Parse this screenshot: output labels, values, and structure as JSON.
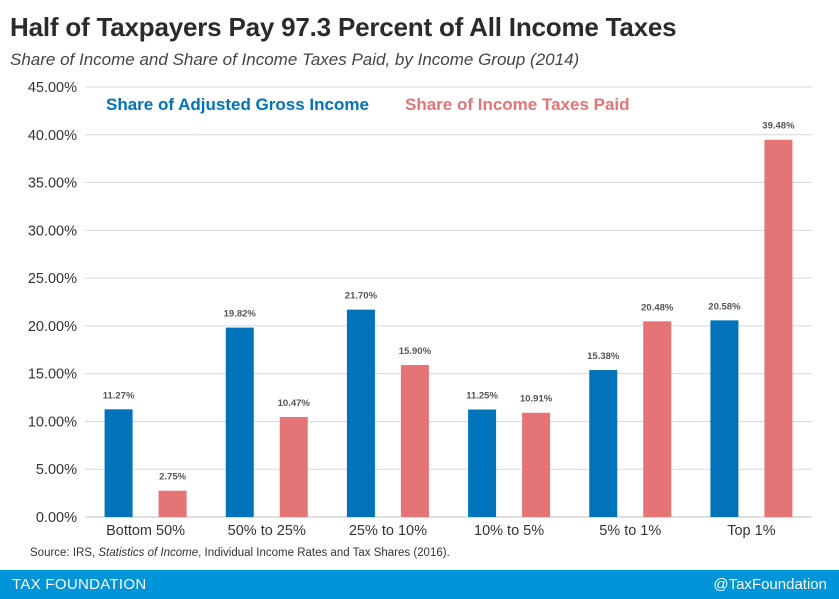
{
  "header": {
    "title": "Half of Taxpayers Pay 97.3 Percent of All Income Taxes",
    "subtitle": "Share of Income and Share of Income Taxes Paid, by Income Group (2014)"
  },
  "chart_data": {
    "type": "bar",
    "categories": [
      "Bottom 50%",
      "50% to 25%",
      "25% to 10%",
      "10% to 5%",
      "5% to 1%",
      "Top 1%"
    ],
    "series": [
      {
        "name": "Share of Adjusted Gross Income",
        "color": "#0073bb",
        "values": [
          11.27,
          19.82,
          21.7,
          11.25,
          15.38,
          20.58
        ],
        "labels": [
          "11.27%",
          "19.82%",
          "21.70%",
          "11.25%",
          "15.38%",
          "20.58%"
        ]
      },
      {
        "name": "Share of Income Taxes Paid",
        "color": "#e47476",
        "values": [
          2.75,
          10.47,
          15.9,
          10.91,
          20.48,
          39.48
        ],
        "labels": [
          "2.75%",
          "10.47%",
          "15.90%",
          "10.91%",
          "20.48%",
          "39.48%"
        ]
      }
    ],
    "yticks": [
      "0.00%",
      "5.00%",
      "10.00%",
      "15.00%",
      "20.00%",
      "25.00%",
      "30.00%",
      "35.00%",
      "40.00%",
      "45.00%"
    ],
    "ylim": [
      0,
      45
    ],
    "xlabel": "",
    "ylabel": "",
    "grid": true,
    "legend_placement": "top-left"
  },
  "source": {
    "prefix": "Source: IRS, ",
    "italic": "Statistics of Income",
    "suffix": ", Individual Income Rates and Tax Shares (2016)."
  },
  "footer": {
    "left": "TAX FOUNDATION",
    "right": "@TaxFoundation",
    "color": "#0094d8"
  }
}
